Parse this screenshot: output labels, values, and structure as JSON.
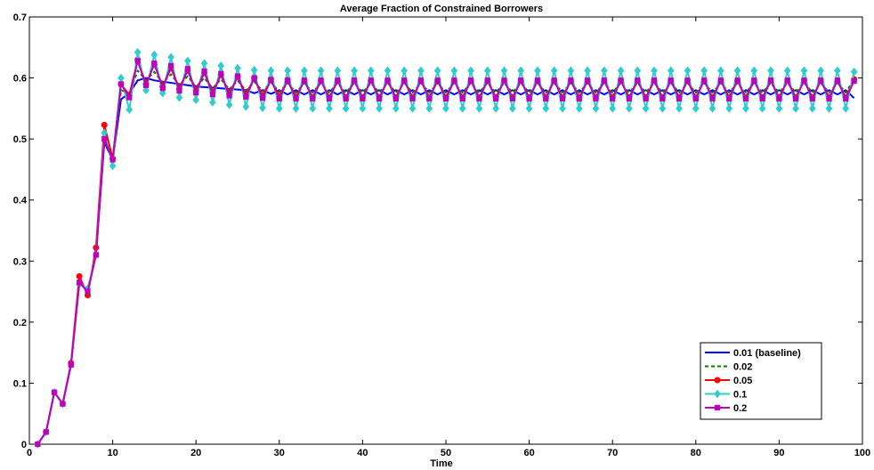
{
  "chart_data": {
    "type": "line",
    "title": "Average Fraction of Constrained Borrowers",
    "xlabel": "Time",
    "ylabel": "",
    "xlim": [
      0,
      100
    ],
    "ylim": [
      0,
      0.7
    ],
    "xticks": [
      0,
      10,
      20,
      30,
      40,
      50,
      60,
      70,
      80,
      90,
      100
    ],
    "yticks": [
      0,
      0.1,
      0.2,
      0.3,
      0.4,
      0.5,
      0.6,
      0.7
    ],
    "grid": false,
    "legend_position": "bottom-right",
    "x": [
      1,
      2,
      3,
      4,
      5,
      6,
      7,
      8,
      9,
      10,
      11,
      12,
      13,
      14,
      15,
      16,
      17,
      18,
      19,
      20,
      21,
      22,
      23,
      24,
      25,
      26,
      27,
      28,
      29,
      30,
      31,
      32,
      33,
      34,
      35,
      36,
      37,
      38,
      39,
      40,
      41,
      42,
      43,
      44,
      45,
      46,
      47,
      48,
      49,
      50,
      51,
      52,
      53,
      54,
      55,
      56,
      57,
      58,
      59,
      60,
      61,
      62,
      63,
      64,
      65,
      66,
      67,
      68,
      69,
      70,
      71,
      72,
      73,
      74,
      75,
      76,
      77,
      78,
      79,
      80,
      81,
      82,
      83,
      84,
      85,
      86,
      87,
      88,
      89,
      90,
      91,
      92,
      93,
      94,
      95,
      96,
      97,
      98,
      99
    ],
    "series": [
      {
        "name": "0.01 (baseline)",
        "color": "#0000ff",
        "style": "solid",
        "marker": "none",
        "values": [
          0,
          0.02,
          0.085,
          0.066,
          0.13,
          0.265,
          0.25,
          0.31,
          0.495,
          0.465,
          0.565,
          0.575,
          0.596,
          0.6,
          0.596,
          0.594,
          0.592,
          0.59,
          0.588,
          0.586,
          0.585,
          0.584,
          0.583,
          0.582,
          0.581,
          0.58,
          0.575,
          0.58,
          0.574,
          0.58,
          0.573,
          0.58,
          0.573,
          0.58,
          0.573,
          0.58,
          0.573,
          0.58,
          0.573,
          0.58,
          0.573,
          0.58,
          0.573,
          0.58,
          0.573,
          0.58,
          0.573,
          0.58,
          0.573,
          0.58,
          0.573,
          0.58,
          0.573,
          0.58,
          0.573,
          0.58,
          0.573,
          0.58,
          0.573,
          0.58,
          0.573,
          0.58,
          0.573,
          0.58,
          0.573,
          0.58,
          0.573,
          0.58,
          0.573,
          0.58,
          0.573,
          0.58,
          0.573,
          0.58,
          0.573,
          0.58,
          0.573,
          0.58,
          0.573,
          0.58,
          0.573,
          0.58,
          0.573,
          0.58,
          0.573,
          0.58,
          0.573,
          0.58,
          0.573,
          0.58,
          0.573,
          0.58,
          0.573,
          0.58,
          0.573,
          0.58,
          0.573,
          0.58,
          0.567
        ]
      },
      {
        "name": "0.02",
        "color": "#008000",
        "style": "dashed",
        "marker": "none",
        "values": [
          0,
          0.02,
          0.085,
          0.066,
          0.13,
          0.268,
          0.248,
          0.315,
          0.505,
          0.462,
          0.58,
          0.575,
          0.612,
          0.596,
          0.61,
          0.592,
          0.606,
          0.588,
          0.603,
          0.585,
          0.6,
          0.583,
          0.598,
          0.581,
          0.596,
          0.579,
          0.594,
          0.578,
          0.593,
          0.577,
          0.592,
          0.576,
          0.592,
          0.576,
          0.592,
          0.576,
          0.592,
          0.576,
          0.592,
          0.576,
          0.592,
          0.576,
          0.592,
          0.576,
          0.592,
          0.576,
          0.592,
          0.576,
          0.592,
          0.576,
          0.592,
          0.576,
          0.592,
          0.576,
          0.592,
          0.576,
          0.592,
          0.576,
          0.592,
          0.576,
          0.592,
          0.576,
          0.592,
          0.576,
          0.592,
          0.576,
          0.592,
          0.576,
          0.592,
          0.576,
          0.592,
          0.576,
          0.592,
          0.576,
          0.592,
          0.576,
          0.592,
          0.576,
          0.592,
          0.576,
          0.592,
          0.576,
          0.592,
          0.576,
          0.592,
          0.576,
          0.592,
          0.576,
          0.592,
          0.576,
          0.592,
          0.576,
          0.592,
          0.576,
          0.592,
          0.576,
          0.592,
          0.576,
          0.598
        ]
      },
      {
        "name": "0.05",
        "color": "#ff0000",
        "style": "solid",
        "marker": "circle",
        "values": [
          0,
          0.02,
          0.085,
          0.066,
          0.133,
          0.275,
          0.244,
          0.322,
          0.523,
          0.468,
          0.59,
          0.572,
          0.63,
          0.59,
          0.622,
          0.586,
          0.616,
          0.583,
          0.612,
          0.58,
          0.608,
          0.577,
          0.605,
          0.575,
          0.602,
          0.573,
          0.6,
          0.571,
          0.598,
          0.57,
          0.597,
          0.569,
          0.596,
          0.568,
          0.596,
          0.568,
          0.596,
          0.568,
          0.596,
          0.568,
          0.596,
          0.568,
          0.596,
          0.568,
          0.596,
          0.568,
          0.596,
          0.568,
          0.596,
          0.568,
          0.596,
          0.568,
          0.596,
          0.568,
          0.596,
          0.568,
          0.596,
          0.568,
          0.596,
          0.568,
          0.596,
          0.568,
          0.596,
          0.568,
          0.596,
          0.568,
          0.596,
          0.568,
          0.596,
          0.568,
          0.596,
          0.568,
          0.596,
          0.568,
          0.596,
          0.568,
          0.596,
          0.568,
          0.596,
          0.568,
          0.596,
          0.568,
          0.596,
          0.568,
          0.596,
          0.568,
          0.596,
          0.568,
          0.596,
          0.568,
          0.596,
          0.568,
          0.596,
          0.568,
          0.596,
          0.568,
          0.596,
          0.568,
          0.598
        ]
      },
      {
        "name": "0.1",
        "color": "#33cccc",
        "style": "solid",
        "marker": "diamond",
        "values": [
          0,
          0.02,
          0.085,
          0.066,
          0.13,
          0.262,
          0.255,
          0.31,
          0.51,
          0.456,
          0.6,
          0.548,
          0.642,
          0.58,
          0.638,
          0.575,
          0.634,
          0.568,
          0.628,
          0.564,
          0.624,
          0.56,
          0.62,
          0.556,
          0.616,
          0.553,
          0.613,
          0.551,
          0.612,
          0.55,
          0.612,
          0.55,
          0.612,
          0.55,
          0.612,
          0.55,
          0.612,
          0.55,
          0.612,
          0.55,
          0.612,
          0.55,
          0.612,
          0.55,
          0.612,
          0.55,
          0.612,
          0.55,
          0.612,
          0.55,
          0.612,
          0.55,
          0.612,
          0.55,
          0.612,
          0.55,
          0.612,
          0.55,
          0.612,
          0.55,
          0.612,
          0.55,
          0.612,
          0.55,
          0.612,
          0.55,
          0.612,
          0.55,
          0.612,
          0.55,
          0.612,
          0.55,
          0.612,
          0.55,
          0.612,
          0.55,
          0.612,
          0.55,
          0.612,
          0.55,
          0.612,
          0.55,
          0.612,
          0.55,
          0.612,
          0.55,
          0.612,
          0.55,
          0.612,
          0.55,
          0.612,
          0.55,
          0.612,
          0.55,
          0.612,
          0.55,
          0.612,
          0.55,
          0.61
        ]
      },
      {
        "name": "0.2",
        "color": "#bf00bf",
        "style": "solid",
        "marker": "square",
        "values": [
          0,
          0.02,
          0.085,
          0.066,
          0.13,
          0.265,
          0.25,
          0.31,
          0.5,
          0.466,
          0.59,
          0.568,
          0.628,
          0.588,
          0.624,
          0.583,
          0.62,
          0.579,
          0.615,
          0.576,
          0.611,
          0.573,
          0.607,
          0.571,
          0.603,
          0.569,
          0.6,
          0.567,
          0.597,
          0.566,
          0.596,
          0.566,
          0.596,
          0.566,
          0.596,
          0.566,
          0.596,
          0.566,
          0.596,
          0.566,
          0.596,
          0.566,
          0.596,
          0.566,
          0.596,
          0.566,
          0.596,
          0.566,
          0.596,
          0.566,
          0.596,
          0.566,
          0.596,
          0.566,
          0.596,
          0.566,
          0.596,
          0.566,
          0.596,
          0.566,
          0.596,
          0.566,
          0.596,
          0.566,
          0.596,
          0.566,
          0.596,
          0.566,
          0.596,
          0.566,
          0.596,
          0.566,
          0.596,
          0.566,
          0.596,
          0.566,
          0.596,
          0.566,
          0.596,
          0.566,
          0.596,
          0.566,
          0.596,
          0.566,
          0.596,
          0.566,
          0.596,
          0.566,
          0.596,
          0.566,
          0.596,
          0.566,
          0.596,
          0.566,
          0.596,
          0.566,
          0.596,
          0.566,
          0.595
        ]
      }
    ]
  }
}
